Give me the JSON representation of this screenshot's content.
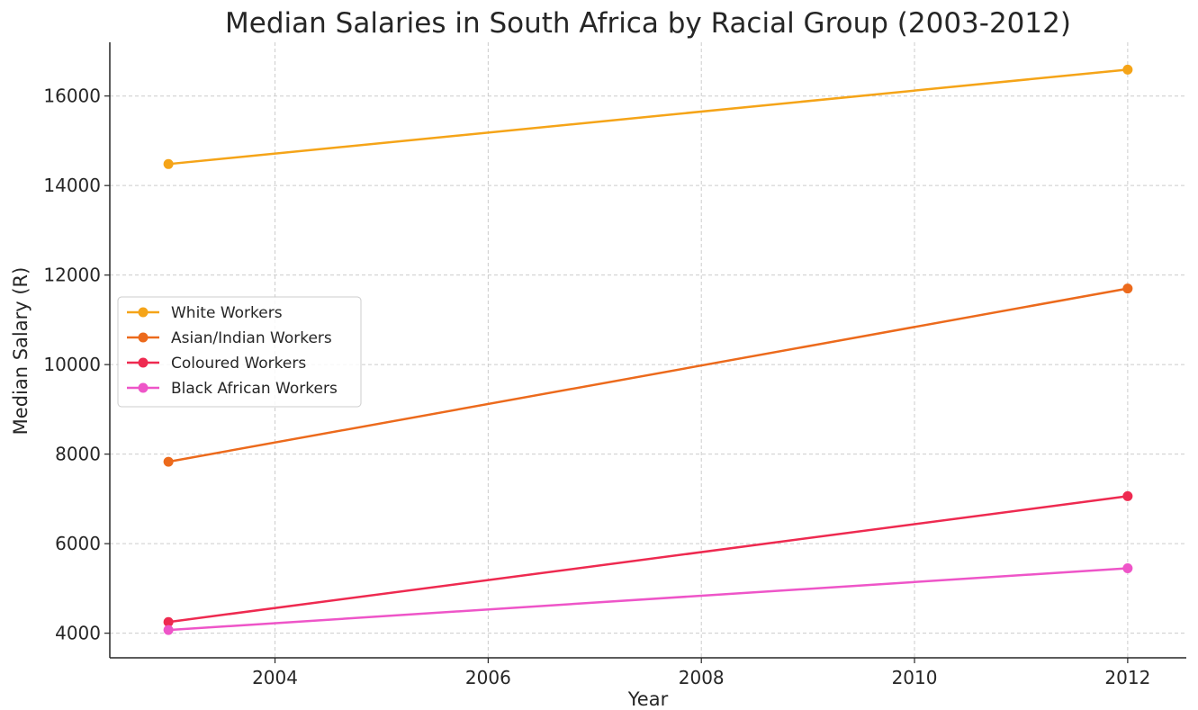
{
  "chart_data": {
    "type": "line",
    "title": "Median Salaries in South Africa by Racial Group (2003-2012)",
    "xlabel": "Year",
    "ylabel": "Median Salary (R)",
    "x": [
      2003,
      2012
    ],
    "xlim": [
      2002.45,
      2012.55
    ],
    "ylim": [
      3450,
      17200
    ],
    "xticks": [
      2004,
      2006,
      2008,
      2010,
      2012
    ],
    "yticks": [
      4000,
      6000,
      8000,
      10000,
      12000,
      14000,
      16000
    ],
    "grid": true,
    "legend_position": "center-left",
    "series": [
      {
        "name": "White Workers",
        "color": "#f5a418",
        "values": [
          14480,
          16590
        ]
      },
      {
        "name": "Asian/Indian Workers",
        "color": "#ec6a1c",
        "values": [
          7830,
          11700
        ]
      },
      {
        "name": "Coloured Workers",
        "color": "#ee2a50",
        "values": [
          4250,
          7060
        ]
      },
      {
        "name": "Black African Workers",
        "color": "#ee55c8",
        "values": [
          4070,
          5450
        ]
      }
    ]
  }
}
